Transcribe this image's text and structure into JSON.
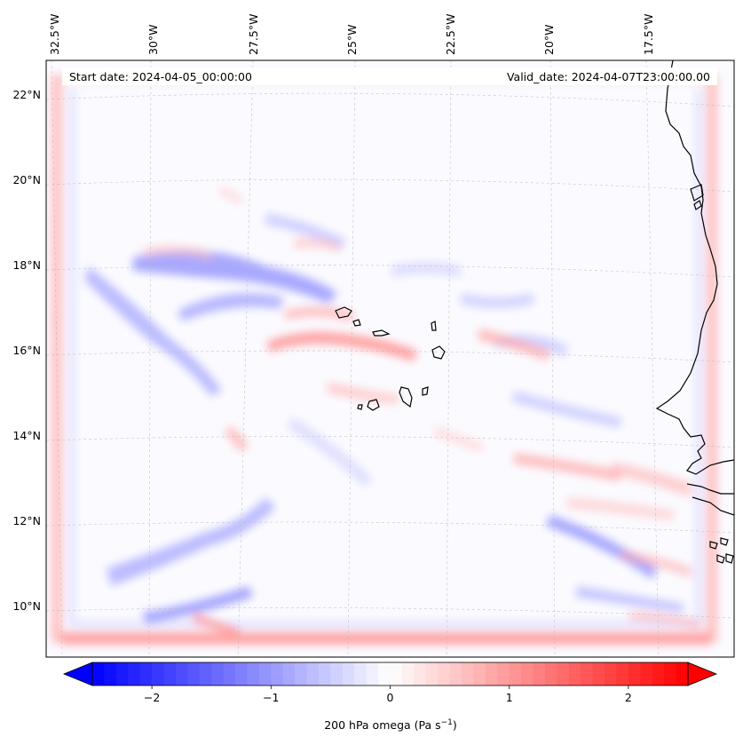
{
  "map": {
    "start_date_label": "Start date: 2024-04-05_00:00:00",
    "valid_date_label": "Valid_date: 2024-04-07T23:00:00.00",
    "lon_labels": [
      "32.5°W",
      "30°W",
      "27.5°W",
      "25°W",
      "22.5°W",
      "20°W",
      "17.5°W"
    ],
    "lat_labels": [
      "22°N",
      "20°N",
      "18°N",
      "16°N",
      "14°N",
      "12°N",
      "10°N"
    ],
    "colorbar": {
      "tick_labels": [
        "−2",
        "−1",
        "0",
        "1",
        "2"
      ],
      "tick_values": [
        -2,
        -1,
        0,
        1,
        2
      ],
      "range": [
        -2.5,
        2.5
      ],
      "label_main": "200 hPa omega (Pa s",
      "label_sup": "−1",
      "label_end": ")",
      "colormap": "bwr",
      "low_color": "#0000ff",
      "mid_color": "#ffffff",
      "high_color": "#ff0000"
    }
  }
}
